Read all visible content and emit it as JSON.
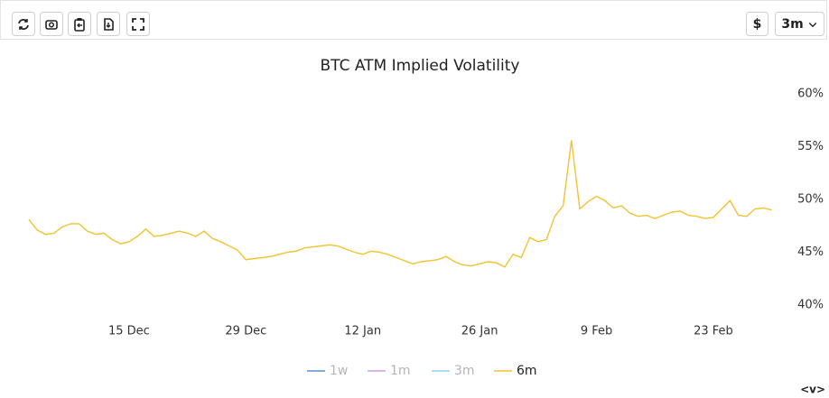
{
  "toolbar": {
    "currency": "$",
    "range": "3m"
  },
  "footer_toggle": "<v>",
  "chart_data": {
    "type": "line",
    "title": "BTC ATM Implied Volatility",
    "x": [
      "3 Dec",
      "4 Dec",
      "5 Dec",
      "6 Dec",
      "7 Dec",
      "8 Dec",
      "9 Dec",
      "10 Dec",
      "11 Dec",
      "12 Dec",
      "13 Dec",
      "14 Dec",
      "15 Dec",
      "16 Dec",
      "17 Dec",
      "18 Dec",
      "19 Dec",
      "20 Dec",
      "21 Dec",
      "22 Dec",
      "23 Dec",
      "24 Dec",
      "25 Dec",
      "26 Dec",
      "27 Dec",
      "28 Dec",
      "29 Dec",
      "30 Dec",
      "31 Dec",
      "1 Jan",
      "2 Jan",
      "3 Jan",
      "4 Jan",
      "5 Jan",
      "6 Jan",
      "7 Jan",
      "8 Jan",
      "9 Jan",
      "10 Jan",
      "11 Jan",
      "12 Jan",
      "13 Jan",
      "14 Jan",
      "15 Jan",
      "16 Jan",
      "17 Jan",
      "18 Jan",
      "19 Jan",
      "20 Jan",
      "21 Jan",
      "22 Jan",
      "23 Jan",
      "24 Jan",
      "25 Jan",
      "26 Jan",
      "27 Jan",
      "28 Jan",
      "29 Jan",
      "30 Jan",
      "31 Jan",
      "1 Feb",
      "2 Feb",
      "3 Feb",
      "4 Feb",
      "5 Feb",
      "6 Feb",
      "7 Feb",
      "8 Feb",
      "9 Feb",
      "10 Feb",
      "11 Feb",
      "12 Feb",
      "13 Feb",
      "14 Feb",
      "15 Feb",
      "16 Feb",
      "17 Feb",
      "18 Feb",
      "19 Feb",
      "20 Feb",
      "21 Feb",
      "22 Feb",
      "23 Feb",
      "24 Feb",
      "25 Feb",
      "26 Feb",
      "27 Feb",
      "28 Feb",
      "1 Mar",
      "2 Mar"
    ],
    "xticks": [
      "15 Dec",
      "29 Dec",
      "12 Jan",
      "26 Jan",
      "9 Feb",
      "23 Feb"
    ],
    "series": [
      {
        "name": "1w",
        "color": "#5b8fd9",
        "visible": false
      },
      {
        "name": "1m",
        "color": "#c9a2e8",
        "visible": false
      },
      {
        "name": "3m",
        "color": "#8fd3f0",
        "visible": false
      },
      {
        "name": "6m",
        "color": "#f2c230",
        "visible": true,
        "values": [
          48.1,
          47.1,
          46.7,
          46.8,
          47.4,
          47.7,
          47.7,
          47.0,
          46.7,
          46.8,
          46.2,
          45.8,
          46.0,
          46.5,
          47.2,
          46.5,
          46.6,
          46.8,
          47.0,
          46.8,
          46.5,
          47.0,
          46.3,
          46.0,
          45.6,
          45.2,
          44.3,
          44.4,
          44.5,
          44.6,
          44.8,
          45.0,
          45.1,
          45.4,
          45.5,
          45.6,
          45.7,
          45.6,
          45.3,
          45.0,
          44.8,
          45.1,
          45.0,
          44.8,
          44.5,
          44.2,
          43.9,
          44.1,
          44.2,
          44.3,
          44.6,
          44.1,
          43.8,
          43.7,
          43.9,
          44.1,
          44.0,
          43.6,
          44.8,
          44.5,
          46.4,
          46.0,
          46.2,
          48.4,
          49.4,
          55.6,
          49.1,
          49.8,
          50.3,
          49.9,
          49.2,
          49.4,
          48.7,
          48.4,
          48.5,
          48.2,
          48.5,
          48.8,
          48.9,
          48.5,
          48.4,
          48.2,
          48.3,
          49.1,
          49.9,
          48.5,
          48.4,
          49.1,
          49.2,
          49.0
        ]
      }
    ],
    "ylim": [
      40,
      60
    ],
    "yticks": [
      {
        "value": 40,
        "label": "40%"
      },
      {
        "value": 45,
        "label": "45%"
      },
      {
        "value": 50,
        "label": "50%"
      },
      {
        "value": 55,
        "label": "55%"
      },
      {
        "value": 60,
        "label": "60%"
      }
    ],
    "grid": false
  }
}
